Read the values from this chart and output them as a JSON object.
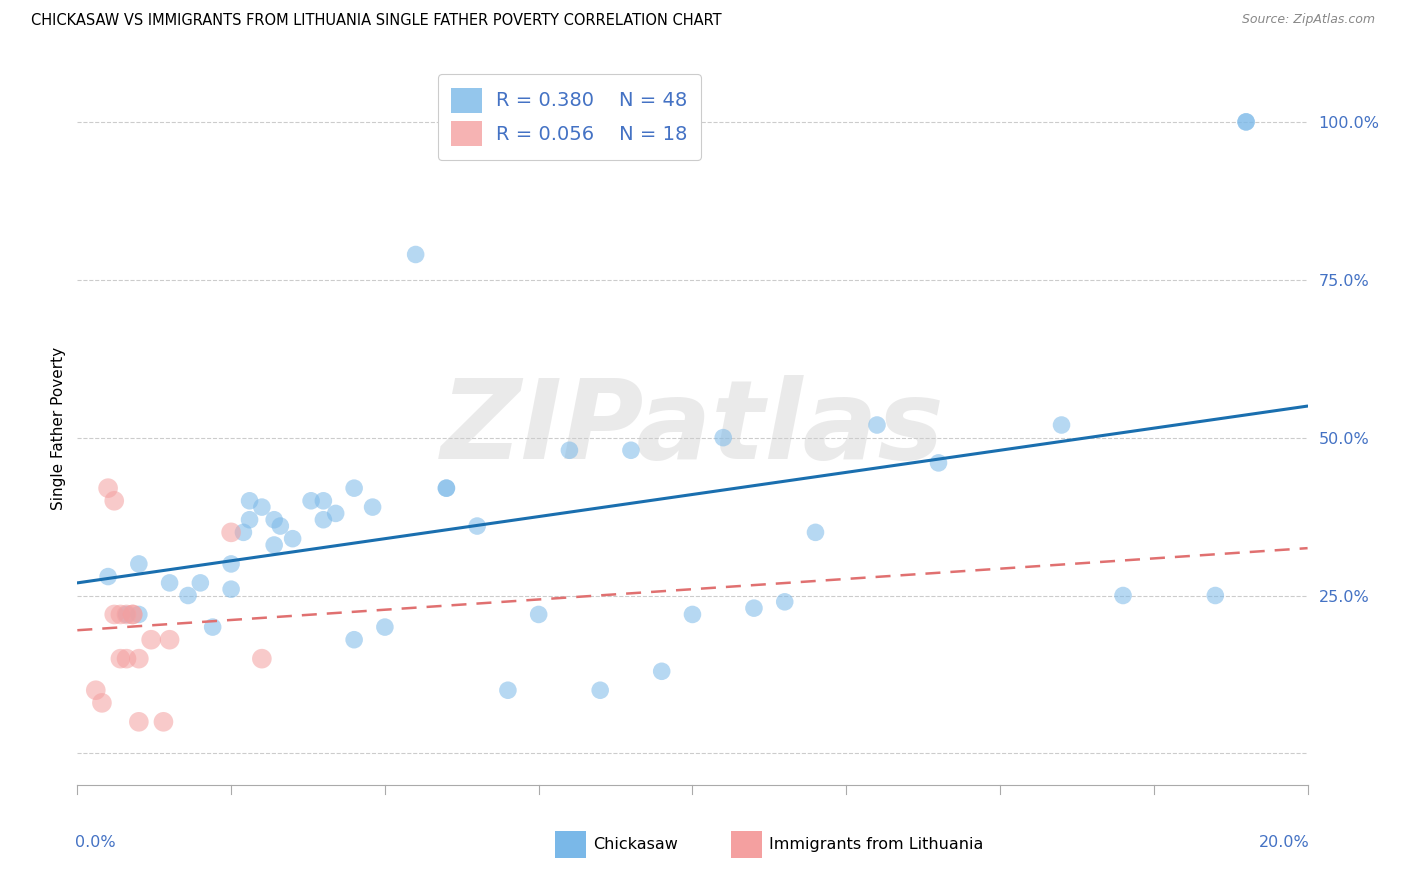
{
  "title": "CHICKASAW VS IMMIGRANTS FROM LITHUANIA SINGLE FATHER POVERTY CORRELATION CHART",
  "source": "Source: ZipAtlas.com",
  "ylabel": "Single Father Poverty",
  "xlim": [
    0.0,
    0.2
  ],
  "ylim": [
    -0.05,
    1.08
  ],
  "ytick_positions": [
    0.0,
    0.25,
    0.5,
    0.75,
    1.0
  ],
  "ytick_labels": [
    "",
    "25.0%",
    "50.0%",
    "75.0%",
    "100.0%"
  ],
  "xtick_left_label": "0.0%",
  "xtick_right_label": "20.0%",
  "legend_blue_r": "R = 0.380",
  "legend_blue_n": "N = 48",
  "legend_pink_r": "R = 0.056",
  "legend_pink_n": "N = 18",
  "legend_blue_label": "Chickasaw",
  "legend_pink_label": "Immigrants from Lithuania",
  "blue_color": "#7ab8e8",
  "pink_color": "#f4a0a0",
  "trend_blue_color": "#1a6faf",
  "trend_pink_color": "#e07070",
  "watermark_text": "ZIPatlas",
  "blue_scatter_x": [
    0.005,
    0.008,
    0.01,
    0.01,
    0.015,
    0.018,
    0.02,
    0.022,
    0.025,
    0.025,
    0.027,
    0.028,
    0.028,
    0.03,
    0.032,
    0.032,
    0.033,
    0.035,
    0.038,
    0.04,
    0.04,
    0.042,
    0.045,
    0.045,
    0.048,
    0.05,
    0.055,
    0.06,
    0.06,
    0.065,
    0.07,
    0.075,
    0.08,
    0.085,
    0.09,
    0.095,
    0.1,
    0.105,
    0.11,
    0.115,
    0.12,
    0.13,
    0.14,
    0.16,
    0.17,
    0.185,
    0.19,
    0.19
  ],
  "blue_scatter_y": [
    0.28,
    0.22,
    0.3,
    0.22,
    0.27,
    0.25,
    0.27,
    0.2,
    0.3,
    0.26,
    0.35,
    0.37,
    0.4,
    0.39,
    0.37,
    0.33,
    0.36,
    0.34,
    0.4,
    0.37,
    0.4,
    0.38,
    0.42,
    0.18,
    0.39,
    0.2,
    0.79,
    0.42,
    0.42,
    0.36,
    0.1,
    0.22,
    0.48,
    0.1,
    0.48,
    0.13,
    0.22,
    0.5,
    0.23,
    0.24,
    0.35,
    0.52,
    0.46,
    0.52,
    0.25,
    0.25,
    1.0,
    1.0
  ],
  "pink_scatter_x": [
    0.003,
    0.004,
    0.005,
    0.006,
    0.006,
    0.007,
    0.007,
    0.008,
    0.008,
    0.009,
    0.009,
    0.01,
    0.01,
    0.012,
    0.014,
    0.015,
    0.025,
    0.03
  ],
  "pink_scatter_y": [
    0.1,
    0.08,
    0.42,
    0.4,
    0.22,
    0.22,
    0.15,
    0.22,
    0.15,
    0.22,
    0.22,
    0.15,
    0.05,
    0.18,
    0.05,
    0.18,
    0.35,
    0.15
  ],
  "blue_trend_x": [
    0.0,
    0.2
  ],
  "blue_trend_y": [
    0.27,
    0.55
  ],
  "pink_trend_x": [
    0.0,
    0.2
  ],
  "pink_trend_y": [
    0.195,
    0.325
  ],
  "grid_color": "#cccccc",
  "bg_color": "#ffffff"
}
